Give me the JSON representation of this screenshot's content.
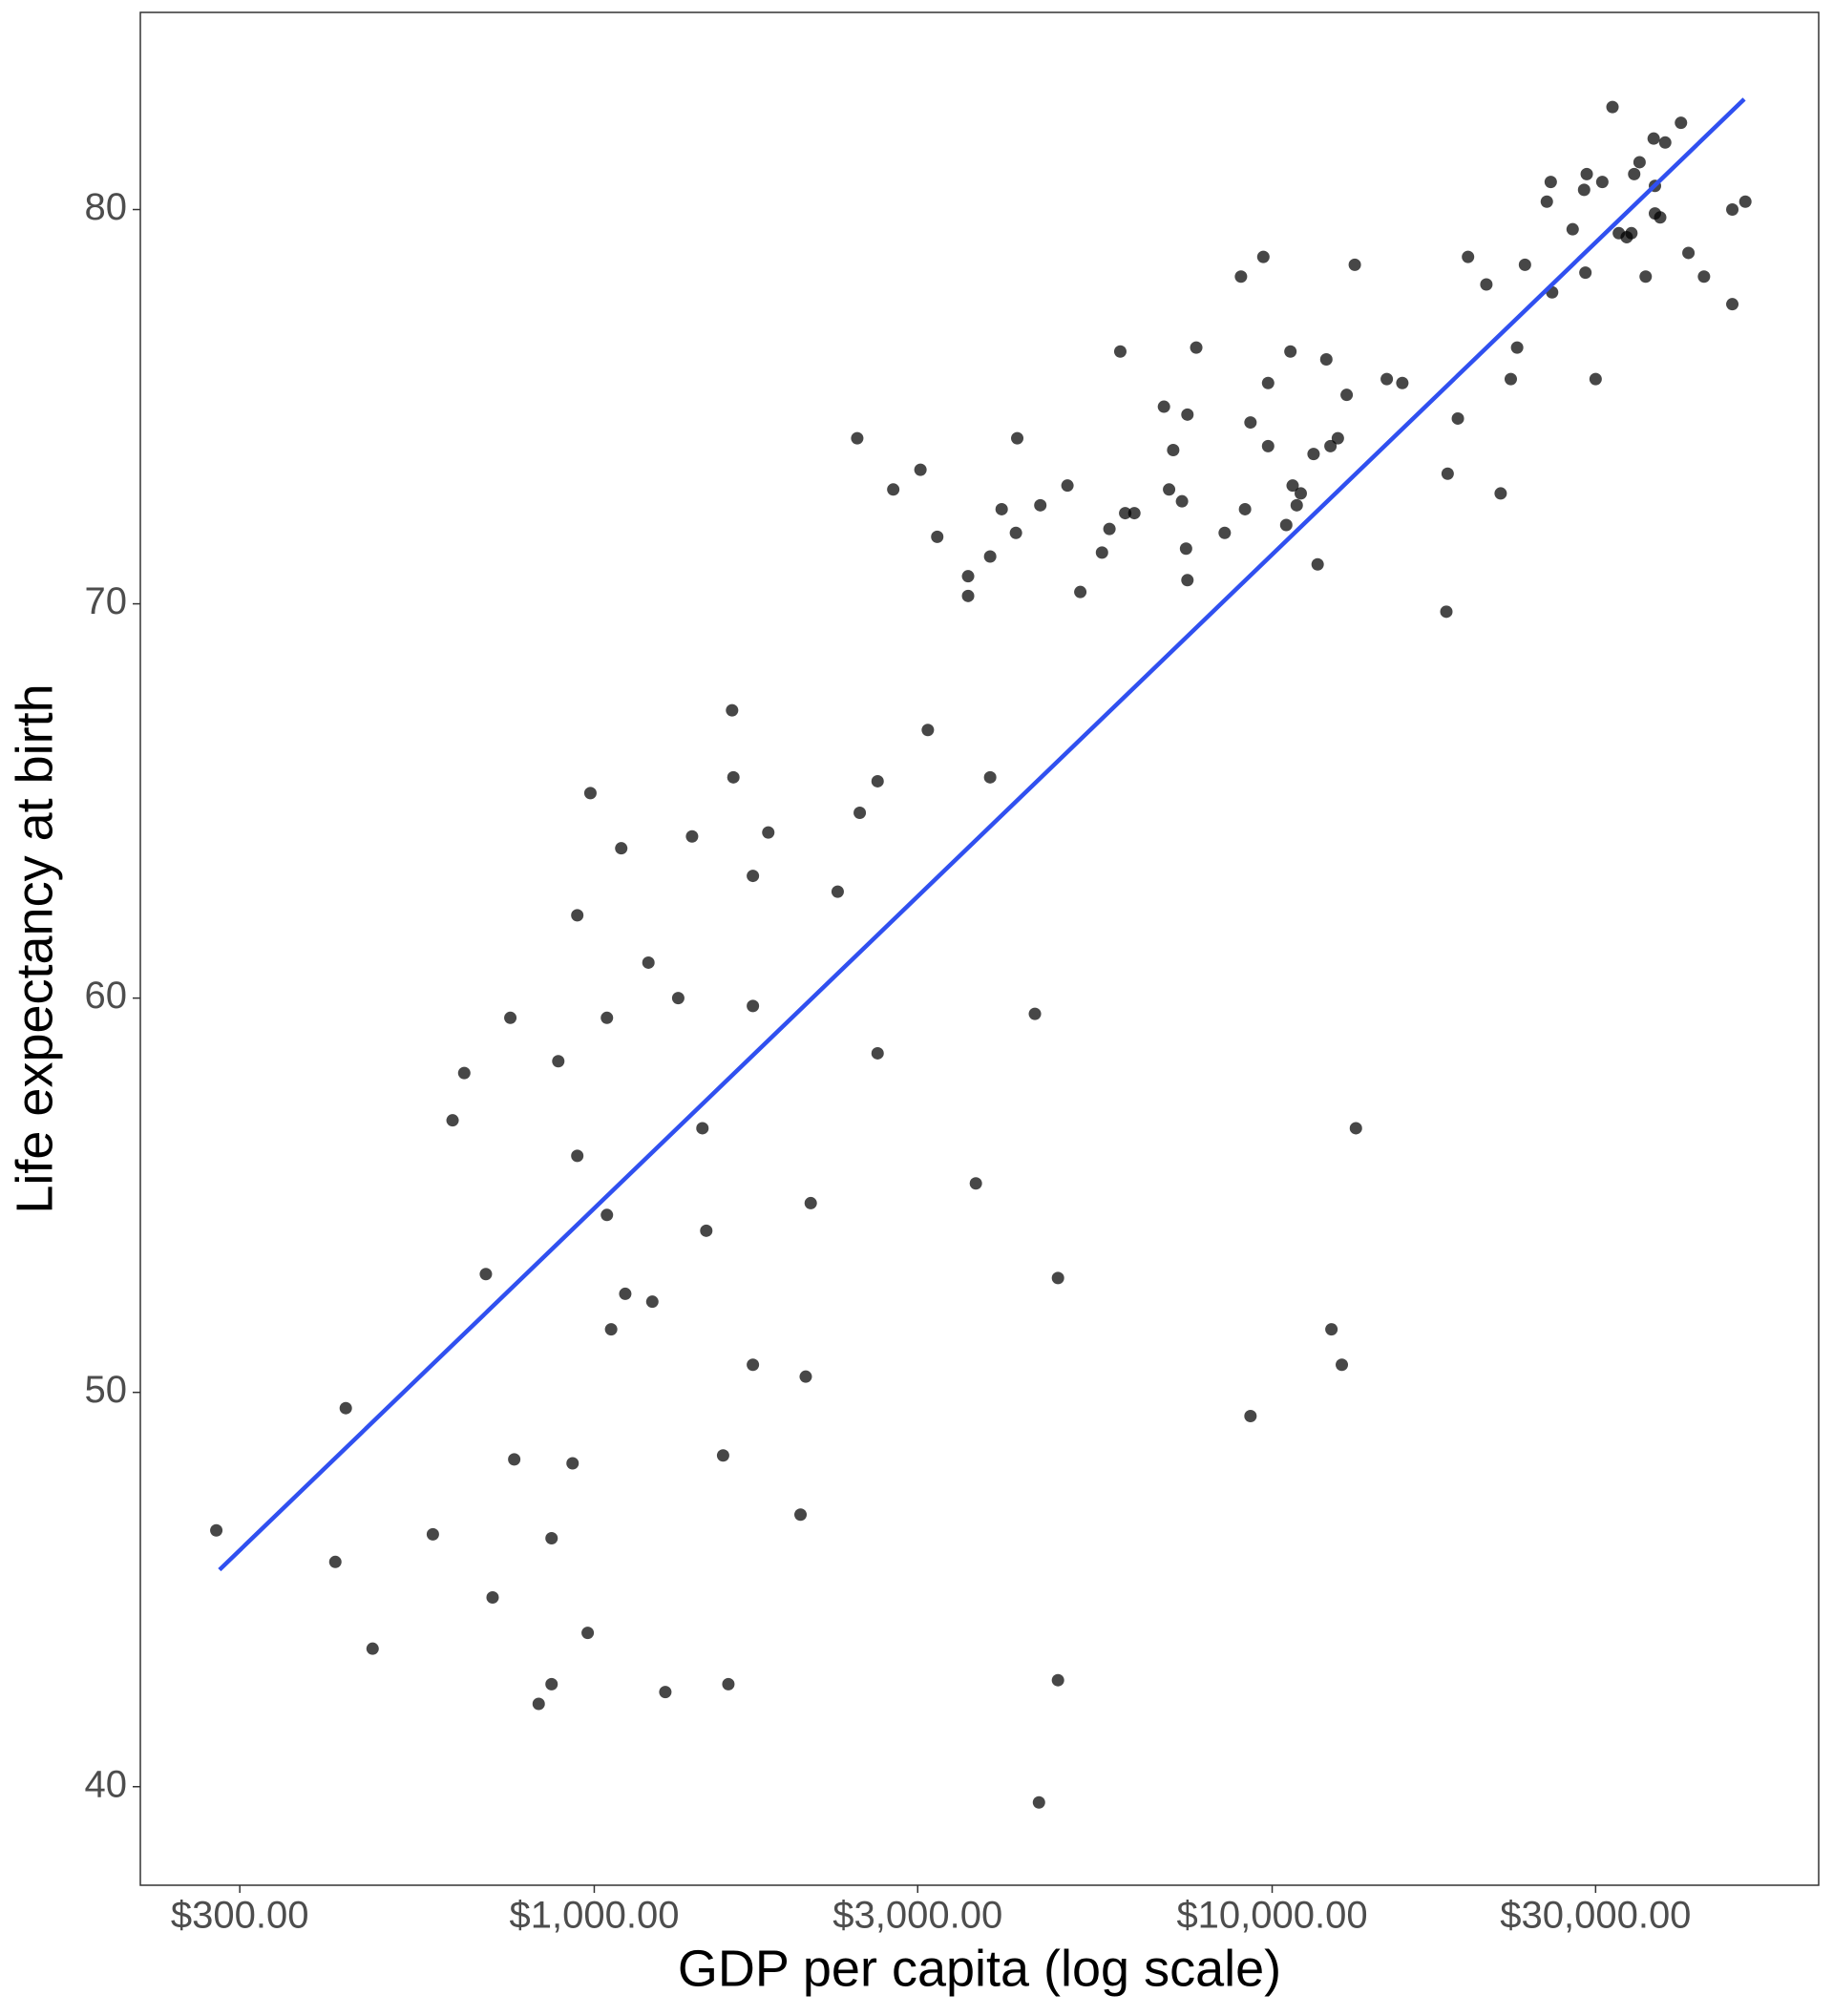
{
  "chart_data": {
    "type": "scatter",
    "x_label": "GDP per capita (log scale)",
    "y_label": "Life expectancy at birth",
    "xscale": "log",
    "grid": true,
    "color": "#000000",
    "xlim": [
      214,
      64000
    ],
    "ylim": [
      37.5,
      85
    ],
    "xticks": [
      {
        "value": 300,
        "label": "$300.00"
      },
      {
        "value": 1000,
        "label": "$1,000.00"
      },
      {
        "value": 3000,
        "label": "$3,000.00"
      },
      {
        "value": 10000,
        "label": "$10,000.00"
      },
      {
        "value": 30000,
        "label": "$30,000.00"
      }
    ],
    "yticks": [
      40,
      50,
      60,
      70,
      80
    ],
    "x": [
      277,
      430,
      415,
      471,
      578,
      618,
      643,
      692,
      708,
      752,
      762,
      828,
      865,
      865,
      885,
      929,
      944,
      944,
      978,
      987,
      1044,
      1044,
      1059,
      1096,
      1111,
      1202,
      1218,
      1273,
      1330,
      1394,
      1444,
      1463,
      1549,
      1577,
      1597,
      1604,
      1714,
      1714,
      1714,
      1806,
      2015,
      2051,
      2086,
      2286,
      2464,
      2443,
      2618,
      2618,
      2761,
      3028,
      3105,
      3206,
      3560,
      3560,
      3655,
      3837,
      3837,
      3990,
      4188,
      4207,
      4467,
      4529,
      4550,
      4831,
      4831,
      4989,
      5212,
      5610,
      5754,
      5970,
      6070,
      6262,
      6924,
      7046,
      7145,
      7362,
      7464,
      7499,
      7499,
      7727,
      8511,
      8995,
      9120,
      9290,
      9290,
      9705,
      9863,
      9863,
      10490,
      10640,
      10720,
      10870,
      11020,
      11510,
      11670,
      12020,
      12190,
      12230,
      12500,
      12670,
      12880,
      13240,
      13290,
      14760,
      15560,
      18070,
      18150,
      18790,
      19450,
      20700,
      21730,
      22490,
      22980,
      23600,
      25420,
      25760,
      25880,
      27750,
      28850,
      28980,
      29110,
      30000,
      30690,
      31770,
      32460,
      33340,
      33880,
      34200,
      34830,
      35560,
      36540,
      36700,
      36700,
      37360,
      38000,
      40090,
      41120,
      43350,
      47730,
      47730,
      49890
    ],
    "values": [
      46.5,
      49.6,
      45.7,
      43.5,
      46.4,
      56.9,
      58.1,
      53.0,
      44.8,
      59.5,
      48.3,
      42.1,
      46.3,
      42.6,
      58.4,
      48.2,
      62.1,
      56.0,
      43.9,
      65.2,
      59.5,
      54.5,
      51.6,
      63.8,
      52.5,
      60.9,
      52.3,
      42.4,
      60.0,
      64.1,
      56.7,
      54.1,
      48.4,
      42.6,
      67.3,
      65.6,
      63.1,
      59.8,
      50.7,
      64.2,
      46.9,
      50.4,
      54.8,
      62.7,
      64.7,
      74.2,
      65.5,
      58.6,
      72.9,
      73.4,
      66.8,
      71.7,
      70.7,
      70.2,
      55.3,
      71.2,
      65.6,
      72.4,
      71.8,
      74.2,
      59.6,
      39.6,
      72.5,
      52.9,
      42.7,
      73.0,
      70.3,
      71.3,
      71.9,
      76.4,
      72.3,
      72.3,
      75.0,
      72.9,
      73.9,
      72.6,
      71.4,
      74.8,
      70.6,
      76.5,
      71.8,
      78.3,
      72.4,
      74.6,
      49.4,
      78.8,
      74.0,
      75.6,
      72.0,
      76.4,
      73.0,
      72.5,
      72.8,
      73.8,
      71.0,
      76.2,
      74.0,
      51.6,
      74.2,
      50.7,
      75.3,
      78.6,
      56.7,
      75.7,
      75.6,
      69.8,
      73.3,
      74.7,
      78.8,
      78.1,
      72.8,
      75.7,
      76.5,
      78.6,
      80.2,
      80.7,
      77.9,
      79.5,
      80.5,
      78.4,
      80.9,
      75.7,
      80.7,
      82.6,
      79.4,
      79.3,
      79.4,
      80.9,
      81.2,
      78.3,
      81.8,
      80.6,
      79.9,
      79.8,
      81.7,
      82.2,
      78.9,
      78.3,
      77.6,
      80.0,
      80.2
    ],
    "trend_line": {
      "color": "#3050f0",
      "x": [
        280,
        49700
      ],
      "values": [
        45.5,
        82.8
      ]
    }
  }
}
